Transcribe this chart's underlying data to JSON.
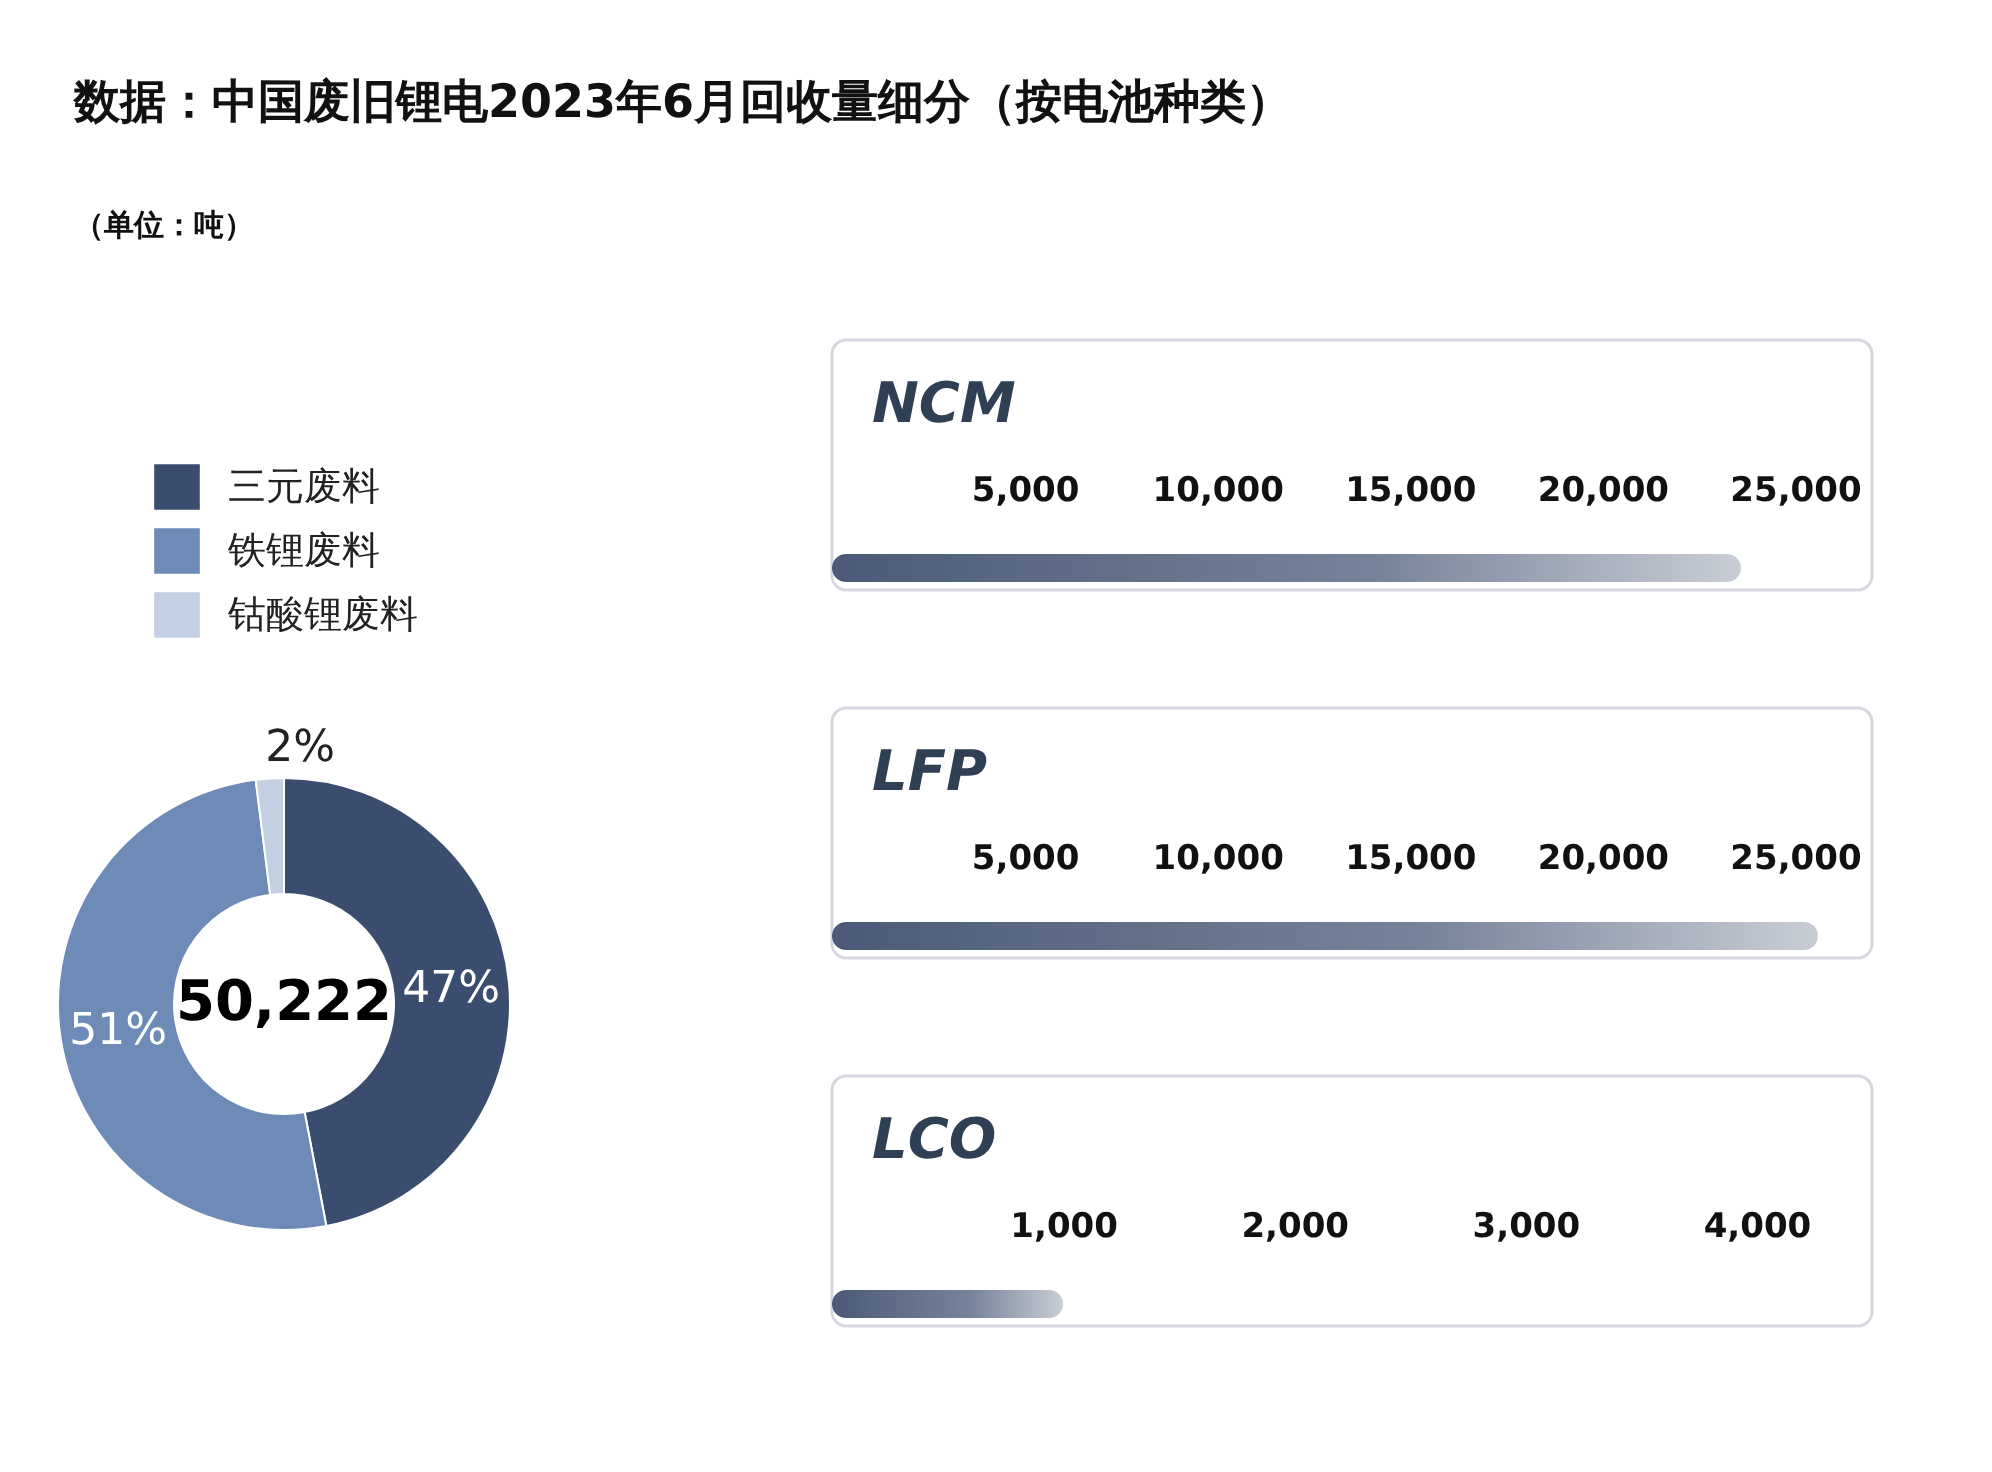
{
  "chart_data": [
    {
      "type": "donut",
      "title": "数据：中国废旧锂电2023年6月回收量细分（按电池种类）",
      "subtitle": "（单位：吨）",
      "categories": [
        "三元废料",
        "铁锂废料",
        "钴酸锂废料"
      ],
      "values": [
        47,
        51,
        2
      ],
      "colors": [
        "#3a4d6e",
        "#6e8bb8",
        "#c3cfe2"
      ],
      "value_labels": [
        "47%",
        "51%",
        "2%"
      ],
      "annotations": [
        "50,222"
      ],
      "legend": "top left"
    },
    {
      "type": "bar",
      "orientation": "horizontal",
      "categories": [
        "NCM"
      ],
      "values": [
        23600
      ],
      "color": "#4a5a78",
      "xlim": [
        0,
        27000
      ],
      "xticks": [
        {
          "value": 5000,
          "label": "5,000"
        },
        {
          "value": 10000,
          "label": "10,000"
        },
        {
          "value": 15000,
          "label": "15,000"
        },
        {
          "value": 20000,
          "label": "20,000"
        },
        {
          "value": 25000,
          "label": "25,000"
        }
      ]
    },
    {
      "type": "bar",
      "orientation": "horizontal",
      "categories": [
        "LFP"
      ],
      "values": [
        25600
      ],
      "color": "#4a5a78",
      "xlim": [
        0,
        27000
      ],
      "xticks": [
        {
          "value": 5000,
          "label": "5,000"
        },
        {
          "value": 10000,
          "label": "10,000"
        },
        {
          "value": 15000,
          "label": "15,000"
        },
        {
          "value": 20000,
          "label": "20,000"
        },
        {
          "value": 25000,
          "label": "25,000"
        }
      ]
    },
    {
      "type": "bar",
      "orientation": "horizontal",
      "categories": [
        "LCO"
      ],
      "values": [
        1000
      ],
      "color": "#4a5a78",
      "xlim": [
        0,
        4500
      ],
      "xticks": [
        {
          "value": 1000,
          "label": "1,000"
        },
        {
          "value": 2000,
          "label": "2,000"
        },
        {
          "value": 3000,
          "label": "3,000"
        },
        {
          "value": 4000,
          "label": "4,000"
        }
      ]
    }
  ]
}
